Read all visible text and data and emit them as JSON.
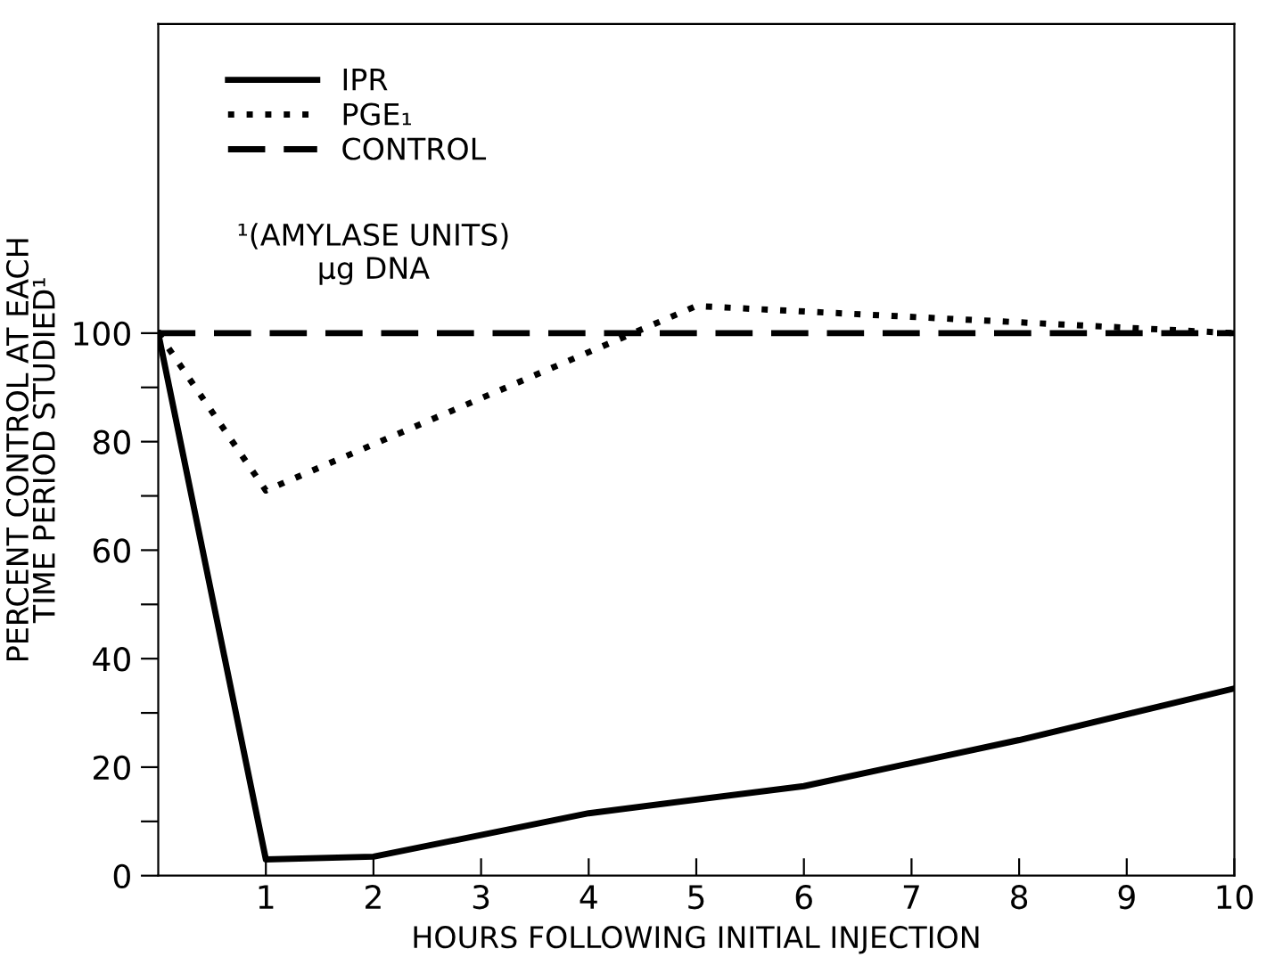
{
  "chart_data": {
    "type": "line",
    "xlabel": "HOURS FOLLOWING INITIAL INJECTION",
    "ylabel": "PERCENT CONTROL AT EACH\nTIME PERIOD STUDIED¹",
    "xlim": [
      0,
      10
    ],
    "ylim": [
      0,
      157
    ],
    "xticks": [
      1,
      2,
      3,
      4,
      5,
      6,
      7,
      8,
      9,
      10
    ],
    "yticks": [
      0,
      {
        "value": 10,
        "label": null
      },
      20,
      {
        "value": 30,
        "label": null
      },
      40,
      {
        "value": 50,
        "label": null
      },
      60,
      {
        "value": 70,
        "label": null
      },
      80,
      {
        "value": 90,
        "label": null
      },
      100
    ],
    "series": [
      {
        "name": "IPR",
        "color": "#000000",
        "line_style": "solid",
        "x": [
          0,
          1,
          2,
          4,
          6,
          8,
          10
        ],
        "values": [
          100,
          3,
          3.5,
          11.5,
          16.5,
          25,
          34.5
        ]
      },
      {
        "name": "PGE₁",
        "color": "#000000",
        "line_style": "dotted",
        "x": [
          0,
          1,
          5,
          10
        ],
        "values": [
          100,
          71,
          105,
          100
        ]
      },
      {
        "name": "CONTROL",
        "color": "#000000",
        "line_style": "dashed",
        "x": [
          0,
          10
        ],
        "values": [
          100,
          100
        ]
      }
    ],
    "legend": "top left",
    "grid": false,
    "annotations": [
      "¹(AMYLASE UNITS)\nμg DNA"
    ]
  }
}
